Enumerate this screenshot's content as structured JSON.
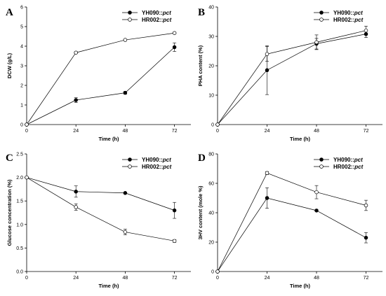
{
  "chart_data": [
    {
      "id": "A",
      "type": "line",
      "panel_label": "A",
      "xlabel": "Time (h)",
      "ylabel": "DCW (g/L)",
      "x": [
        0,
        24,
        48,
        72
      ],
      "xlim": [
        0,
        80
      ],
      "ylim": [
        0,
        6
      ],
      "xticks": [
        0,
        24,
        48,
        72
      ],
      "yticks": [
        0,
        1,
        2,
        3,
        4,
        5,
        6
      ],
      "ytick_labels": [
        "0",
        "1",
        "2",
        "3",
        "4",
        "5",
        "6"
      ],
      "legend_position": "top-right",
      "series": [
        {
          "name_main": "YH090::",
          "name_ital": "pct",
          "marker": "filled",
          "values": [
            0,
            1.25,
            1.62,
            3.95
          ],
          "errors": [
            0,
            0.12,
            0.07,
            0.22
          ]
        },
        {
          "name_main": "HR002::",
          "name_ital": "pct",
          "marker": "open",
          "values": [
            0,
            3.67,
            4.32,
            4.67
          ],
          "errors": [
            0,
            0.04,
            0.03,
            0.03
          ]
        }
      ]
    },
    {
      "id": "B",
      "type": "line",
      "panel_label": "B",
      "xlabel": "Time (h)",
      "ylabel": "PHA content (%)",
      "x": [
        0,
        24,
        48,
        72
      ],
      "xlim": [
        0,
        80
      ],
      "ylim": [
        0,
        40
      ],
      "xticks": [
        0,
        24,
        48,
        72
      ],
      "yticks": [
        0,
        10,
        20,
        30,
        40
      ],
      "ytick_labels": [
        "0",
        "10",
        "20",
        "30",
        "40"
      ],
      "legend_position": "top-right",
      "series": [
        {
          "name_main": "YH090::",
          "name_ital": "pct",
          "marker": "filled",
          "values": [
            0,
            18.5,
            27.5,
            30.8
          ],
          "errors": [
            0,
            8.3,
            1.8,
            1.2
          ]
        },
        {
          "name_main": "HR002::",
          "name_ital": "pct",
          "marker": "open",
          "values": [
            0,
            24.0,
            28.0,
            32.0
          ],
          "errors": [
            0,
            2.5,
            2.5,
            1.5
          ]
        }
      ]
    },
    {
      "id": "C",
      "type": "line",
      "panel_label": "C",
      "xlabel": "Time (h)",
      "ylabel": "Glucose concentration (%)",
      "x": [
        0,
        24,
        48,
        72
      ],
      "xlim": [
        0,
        80
      ],
      "ylim": [
        0,
        2.5
      ],
      "xticks": [
        0,
        24,
        48,
        72
      ],
      "yticks": [
        0,
        0.5,
        1.0,
        1.5,
        2.0,
        2.5
      ],
      "ytick_labels": [
        "0.0",
        "0.5",
        "1.0",
        "1.5",
        "2.0",
        "2.5"
      ],
      "legend_position": "top-right",
      "series": [
        {
          "name_main": "YH090::",
          "name_ital": "pct",
          "marker": "filled",
          "values": [
            2.0,
            1.7,
            1.67,
            1.3
          ],
          "errors": [
            0,
            0.12,
            0,
            0.17
          ]
        },
        {
          "name_main": "HR002::",
          "name_ital": "pct",
          "marker": "open",
          "values": [
            2.0,
            1.37,
            0.84,
            0.65
          ],
          "errors": [
            0,
            0.07,
            0.06,
            0.03
          ]
        }
      ]
    },
    {
      "id": "D",
      "type": "line",
      "panel_label": "D",
      "xlabel": "Time (h)",
      "ylabel": "3HV content (mole %)",
      "x": [
        0,
        24,
        48,
        72
      ],
      "xlim": [
        0,
        80
      ],
      "ylim": [
        0,
        80
      ],
      "xticks": [
        0,
        24,
        48,
        72
      ],
      "yticks": [
        0,
        20,
        40,
        60,
        80
      ],
      "ytick_labels": [
        "0",
        "20",
        "40",
        "60",
        "80"
      ],
      "legend_position": "top-right",
      "series": [
        {
          "name_main": "YH090::",
          "name_ital": "pct",
          "marker": "filled",
          "values": [
            0,
            50,
            41.5,
            23
          ],
          "errors": [
            0,
            7,
            0,
            3.5
          ]
        },
        {
          "name_main": "HR002::",
          "name_ital": "pct",
          "marker": "open",
          "values": [
            0,
            67,
            54,
            45
          ],
          "errors": [
            0,
            1,
            4.5,
            3.5
          ]
        }
      ]
    }
  ]
}
